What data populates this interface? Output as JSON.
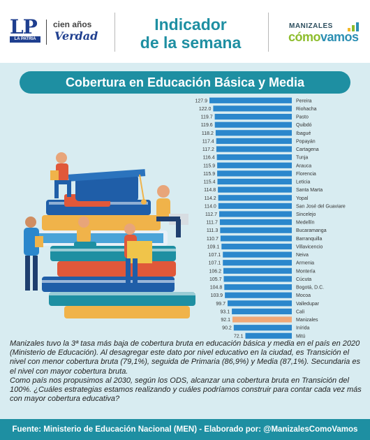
{
  "header": {
    "logo_letters": "LP",
    "logo_band": "LA PATRIA",
    "logo_tag_1": "cien años",
    "logo_tag_2": "Verdad",
    "title_line_1": "Indicador",
    "title_line_2": "de la semana",
    "partner_line_1": "MANIZALES",
    "partner_como": "cómo",
    "partner_vamos": "vamos"
  },
  "colors": {
    "teal": "#1e8fa2",
    "panel_bg": "#d8ecf1",
    "bar": "#2b87cc",
    "bar_highlight": "#f0a877",
    "green": "#8dbd2c"
  },
  "chart_data": {
    "type": "bar",
    "orientation": "horizontal",
    "title": "Cobertura en Educación Básica y Media",
    "highlight": "Manizales",
    "categories": [
      "Pereira",
      "Riohacha",
      "Pasto",
      "Quibdó",
      "Ibagué",
      "Popayán",
      "Cartagena",
      "Tunja",
      "Arauca",
      "Florencia",
      "Leticia",
      "Santa Marta",
      "Yopal",
      "San José del Guaviare",
      "Sincelejo",
      "Medellín",
      "Bucaramanga",
      "Barranquilla",
      "Villavicencio",
      "Neiva",
      "Armenia",
      "Montería",
      "Cúcuta",
      "Bogotá, D.C.",
      "Mocoa",
      "Valledupar",
      "Cali",
      "Manizales",
      "Inírida",
      "Mitú"
    ],
    "values": [
      127.9,
      122.0,
      119.7,
      119.6,
      118.2,
      117.4,
      117.2,
      116.4,
      115.9,
      115.9,
      115.4,
      114.8,
      114.2,
      114.0,
      112.7,
      111.7,
      111.3,
      110.7,
      109.1,
      107.1,
      107.1,
      106.2,
      105.7,
      104.8,
      103.9,
      99.7,
      93.1,
      92.1,
      90.2,
      72.1
    ],
    "value_labels": [
      "127.9",
      "122.0",
      "119.7",
      "119.6",
      "118.2",
      "117.4",
      "117.2",
      "116.4",
      "115.9",
      "115.9",
      "115.4",
      "114.8",
      "114.2",
      "114.0",
      "112.7",
      "111.7",
      "111.3",
      "110.7",
      "109.1",
      "107.1",
      "107.1",
      "106.2",
      "105.7",
      "104.8",
      "103.9",
      "99.7",
      "93.1",
      "92.1",
      "90.2",
      "72.1"
    ],
    "xlim": [
      0,
      127.9
    ]
  },
  "description": {
    "p1": "Manizales tuvo la 3ª tasa más baja de cobertura bruta en educación básica y media en el país en 2020 (Ministerio de Educación). Al desagregar este dato por nivel educativo en la ciudad, es Transición el nivel con menor cobertura bruta (79,1%), seguida de Primaria (86,9%) y Media (87,1%). Secundaria es el nivel con mayor cobertura bruta.",
    "p2": "Como país nos propusimos al 2030, según los ODS, alcanzar una cobertura bruta en Transición del 100%. ¿Cuáles estrategias estamos realizando y cuáles podríamos construir para contar cada vez más con mayor cobertura educativa?"
  },
  "footer": {
    "text": "Fuente: Ministerio de Educación Nacional (MEN)  -  Elaborado por: @ManizalesComoVamos"
  }
}
